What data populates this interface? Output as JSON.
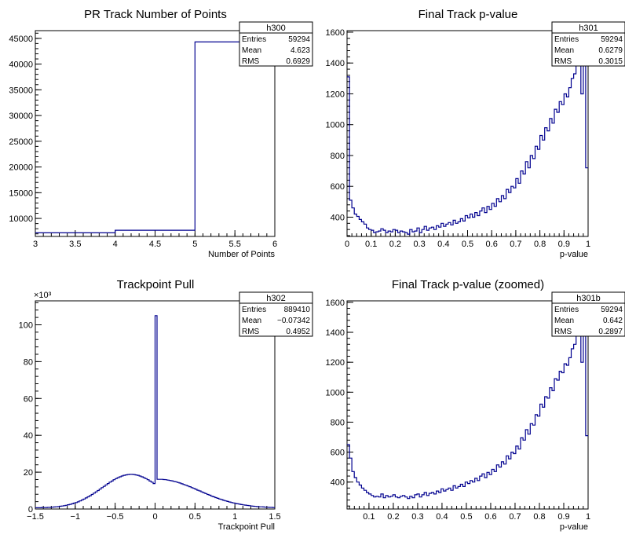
{
  "canvas_title": "",
  "chart_data": [
    {
      "type": "histogram",
      "title": "PR Track Number of Points",
      "xlabel": "Number of Points",
      "ylabel": "",
      "xlim": [
        3,
        6
      ],
      "ylim": [
        6500,
        46500
      ],
      "xticks": [
        3,
        3.5,
        4,
        4.5,
        5,
        5.5,
        6
      ],
      "xtick_labels": [
        "3",
        "3.5",
        "4",
        "4.5",
        "5",
        "5.5",
        "6"
      ],
      "yticks": [
        10000,
        15000,
        20000,
        25000,
        30000,
        35000,
        40000,
        45000
      ],
      "ytick_labels": [
        "10000",
        "15000",
        "20000",
        "25000",
        "30000",
        "35000",
        "40000",
        "45000"
      ],
      "y_exponent": "",
      "bin_edges": [
        3,
        4,
        5,
        6
      ],
      "values": [
        7200,
        7700,
        44300
      ],
      "stats": {
        "name": "h300",
        "rows": [
          [
            "Entries",
            "59294"
          ],
          [
            "Mean",
            "4.623"
          ],
          [
            "RMS",
            "0.6929"
          ]
        ]
      }
    },
    {
      "type": "histogram",
      "title": "Final Track p-value",
      "xlabel": "p-value",
      "ylabel": "",
      "xlim": [
        0,
        1
      ],
      "ylim": [
        275,
        1610
      ],
      "xticks": [
        0,
        0.1,
        0.2,
        0.3,
        0.4,
        0.5,
        0.6,
        0.7,
        0.8,
        0.9,
        1
      ],
      "xtick_labels": [
        "0",
        "0.1",
        "0.2",
        "0.3",
        "0.4",
        "0.5",
        "0.6",
        "0.7",
        "0.8",
        "0.9",
        "1"
      ],
      "yticks": [
        400,
        600,
        800,
        1000,
        1200,
        1400,
        1600
      ],
      "ytick_labels": [
        "400",
        "600",
        "800",
        "1000",
        "1200",
        "1400",
        "1600"
      ],
      "y_exponent": "",
      "xmin": 0,
      "xmax": 1,
      "values": [
        1310,
        510,
        460,
        420,
        405,
        385,
        370,
        355,
        330,
        320,
        315,
        300,
        305,
        310,
        325,
        315,
        300,
        310,
        305,
        320,
        315,
        300,
        310,
        305,
        300,
        290,
        320,
        305,
        310,
        330,
        300,
        320,
        340,
        315,
        330,
        335,
        320,
        345,
        335,
        360,
        340,
        355,
        365,
        350,
        380,
        360,
        370,
        390,
        375,
        410,
        395,
        420,
        400,
        430,
        410,
        440,
        460,
        430,
        470,
        450,
        490,
        470,
        520,
        500,
        540,
        520,
        580,
        560,
        600,
        590,
        650,
        620,
        700,
        680,
        760,
        720,
        800,
        780,
        860,
        840,
        930,
        900,
        980,
        960,
        1040,
        1010,
        1100,
        1080,
        1150,
        1130,
        1200,
        1180,
        1240,
        1300,
        1330,
        1420,
        1650,
        1200,
        1650,
        720
      ],
      "stats": {
        "name": "h301",
        "rows": [
          [
            "Entries",
            "59294"
          ],
          [
            "Mean",
            "0.6279"
          ],
          [
            "RMS",
            "0.3015"
          ]
        ]
      }
    },
    {
      "type": "histogram",
      "title": "Trackpoint Pull",
      "xlabel": "Trackpoint Pull",
      "ylabel": "",
      "xlim": [
        -1.5,
        1.5
      ],
      "ylim": [
        0,
        113
      ],
      "xticks": [
        -1.5,
        -1,
        -0.5,
        0,
        0.5,
        1,
        1.5
      ],
      "xtick_labels": [
        "−1.5",
        "−1",
        "−0.5",
        "0",
        "0.5",
        "1",
        "1.5"
      ],
      "yticks": [
        0,
        20,
        40,
        60,
        80,
        100
      ],
      "ytick_labels": [
        "0",
        "20",
        "40",
        "60",
        "80",
        "100"
      ],
      "y_exponent": "×10³",
      "xmin": -1.5,
      "xmax": 1.5,
      "spike_bin": 60,
      "spike_value": 105,
      "values": [],
      "stats": {
        "name": "h302",
        "rows": [
          [
            "Entries",
            "889410"
          ],
          [
            "Mean",
            "−0.07342"
          ],
          [
            "RMS",
            "0.4952"
          ]
        ]
      }
    },
    {
      "type": "histogram",
      "title": "Final Track p-value (zoomed)",
      "xlabel": "p-value",
      "ylabel": "",
      "xlim": [
        0.01,
        1
      ],
      "ylim": [
        220,
        1610
      ],
      "xticks": [
        0.1,
        0.2,
        0.3,
        0.4,
        0.5,
        0.6,
        0.7,
        0.8,
        0.9,
        1
      ],
      "xtick_labels": [
        "0.1",
        "0.2",
        "0.3",
        "0.4",
        "0.5",
        "0.6",
        "0.7",
        "0.8",
        "0.9",
        "1"
      ],
      "yticks": [
        400,
        600,
        800,
        1000,
        1200,
        1400,
        1600
      ],
      "ytick_labels": [
        "400",
        "600",
        "800",
        "1000",
        "1200",
        "1400",
        "1600"
      ],
      "y_exponent": "",
      "xmin": 0.01,
      "xmax": 1,
      "values": [
        650,
        560,
        470,
        430,
        400,
        380,
        360,
        345,
        330,
        320,
        310,
        300,
        305,
        300,
        320,
        295,
        310,
        300,
        305,
        315,
        300,
        295,
        305,
        310,
        300,
        290,
        305,
        295,
        315,
        320,
        300,
        315,
        330,
        310,
        325,
        330,
        320,
        340,
        330,
        355,
        340,
        350,
        360,
        345,
        375,
        360,
        370,
        385,
        370,
        400,
        390,
        410,
        400,
        425,
        410,
        440,
        455,
        430,
        465,
        450,
        485,
        470,
        515,
        500,
        535,
        520,
        575,
        555,
        600,
        590,
        640,
        620,
        695,
        680,
        750,
        720,
        790,
        780,
        850,
        840,
        920,
        900,
        970,
        960,
        1030,
        1010,
        1090,
        1080,
        1140,
        1130,
        1190,
        1180,
        1230,
        1290,
        1320,
        1410,
        1650,
        1200,
        1650,
        710
      ],
      "stats": {
        "name": "h301b",
        "rows": [
          [
            "Entries",
            "59294"
          ],
          [
            "Mean",
            "0.642"
          ],
          [
            "RMS",
            "0.2897"
          ]
        ]
      }
    }
  ]
}
